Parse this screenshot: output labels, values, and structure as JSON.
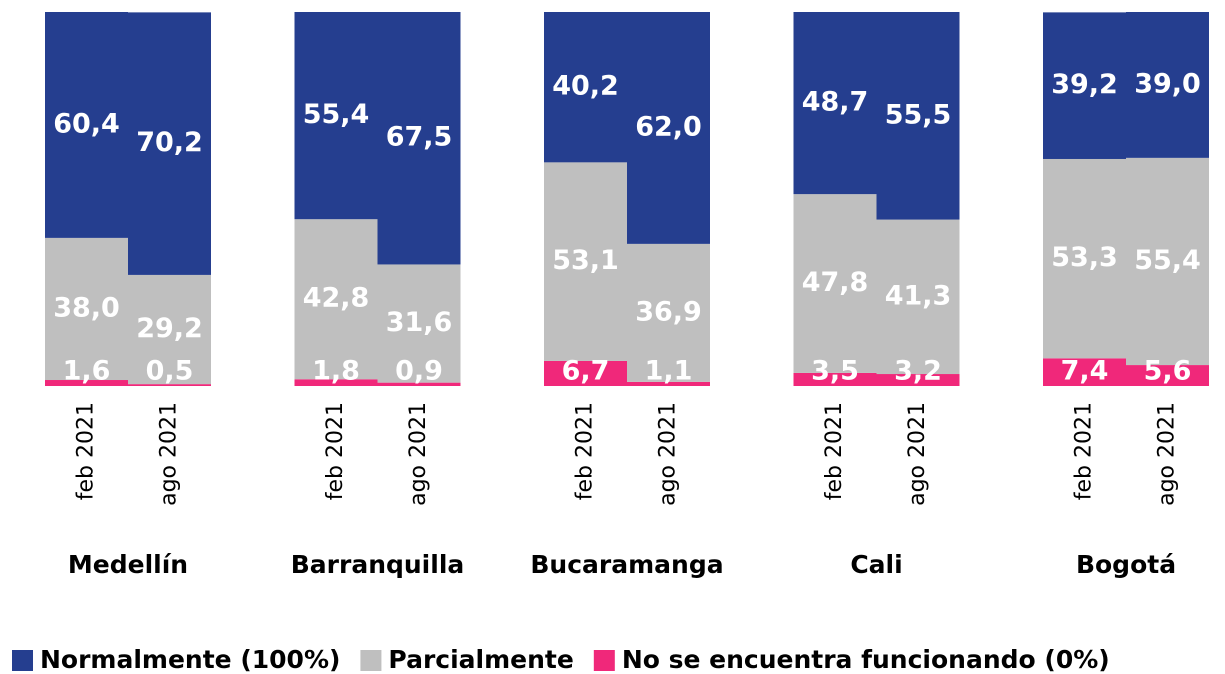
{
  "chart_data": {
    "type": "bar",
    "stacked": true,
    "categories": [
      "feb 2021",
      "ago 2021",
      "feb 2021",
      "ago 2021",
      "feb 2021",
      "ago 2021",
      "feb 2021",
      "ago 2021",
      "feb 2021",
      "ago 2021"
    ],
    "groups": [
      "Medellín",
      "Barranquilla",
      "Bucaramanga",
      "Cali",
      "Bogotá"
    ],
    "ylim": [
      0,
      100
    ],
    "legend": "bottom",
    "series": [
      {
        "name": "No se encuentra funcionando (0%)",
        "color": "#f0287a",
        "values": [
          1.6,
          0.5,
          1.8,
          0.9,
          6.7,
          1.1,
          3.5,
          3.2,
          7.4,
          5.6
        ],
        "value_labels": [
          "1,6",
          "0,5",
          "1,8",
          "0,9",
          "6,7",
          "1,1",
          "3,5",
          "3,2",
          "7,4",
          "5,6"
        ]
      },
      {
        "name": "Parcialmente",
        "color": "#bfbfbf",
        "values": [
          38.0,
          29.2,
          42.8,
          31.6,
          53.1,
          36.9,
          47.8,
          41.3,
          53.3,
          55.4
        ],
        "value_labels": [
          "38,0",
          "29,2",
          "42,8",
          "31,6",
          "53,1",
          "36,9",
          "47,8",
          "41,3",
          "53,3",
          "55,4"
        ]
      },
      {
        "name": "Normalmente (100%)",
        "color": "#253e8f",
        "values": [
          60.4,
          70.2,
          55.4,
          67.5,
          40.2,
          62.0,
          48.7,
          55.5,
          39.2,
          39.0
        ],
        "value_labels": [
          "60,4",
          "70,2",
          "55,4",
          "67,5",
          "40,2",
          "62,0",
          "48,7",
          "55,5",
          "39,2",
          "39,0"
        ]
      }
    ]
  }
}
